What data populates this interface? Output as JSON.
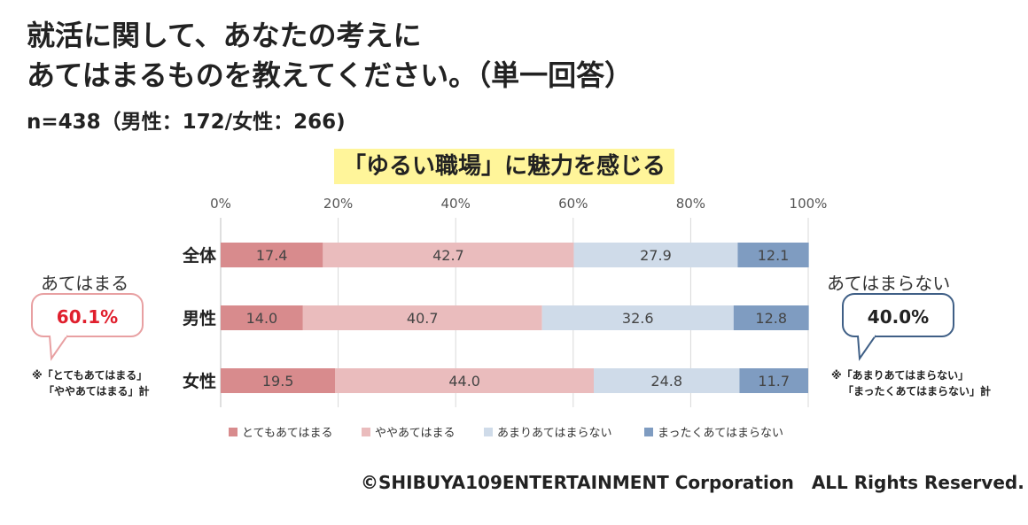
{
  "header": {
    "title_line1": "就活に関して、あなたの考えに",
    "title_line2": "あてはまるものを教えてください。（単一回答）",
    "sample": "n=438（男性：172/女性：266)"
  },
  "left_callout": {
    "label": "あてはまる",
    "value": "60.1%",
    "note_line1": "※「とてもあてはまる」",
    "note_line2": "「ややあてはまる」計"
  },
  "right_callout": {
    "label": "あてはまらない",
    "value": "40.0%",
    "note_line1": "※「あまりあてはまらない」",
    "note_line2": "「まったくあてはまらない」計"
  },
  "footer": {
    "copyright": "©SHIBUYA109ENTERTAINMENT Corporation　ALL Rights Reserved."
  },
  "colors": {
    "series": [
      "#d88b8d",
      "#eabcbd",
      "#cfdbe9",
      "#7f9cc1"
    ],
    "highlight": "#fff59a",
    "grid": "#d9d9d9"
  },
  "chart_data": {
    "type": "bar",
    "orientation": "horizontal",
    "stacked": true,
    "title": "「ゆるい職場」に魅力を感じる",
    "categories": [
      "全体",
      "男性",
      "女性"
    ],
    "series": [
      {
        "name": "とてもあてはまる",
        "values": [
          17.4,
          14.0,
          19.5
        ]
      },
      {
        "name": "ややあてはまる",
        "values": [
          42.7,
          40.7,
          44.0
        ]
      },
      {
        "name": "あまりあてはまらない",
        "values": [
          27.9,
          32.6,
          24.8
        ]
      },
      {
        "name": "まったくあてはまらない",
        "values": [
          12.1,
          12.8,
          11.7
        ]
      }
    ],
    "xlim": [
      0,
      100
    ],
    "xticks": [
      "0%",
      "20%",
      "40%",
      "60%",
      "80%",
      "100%"
    ],
    "legend_position": "bottom"
  }
}
